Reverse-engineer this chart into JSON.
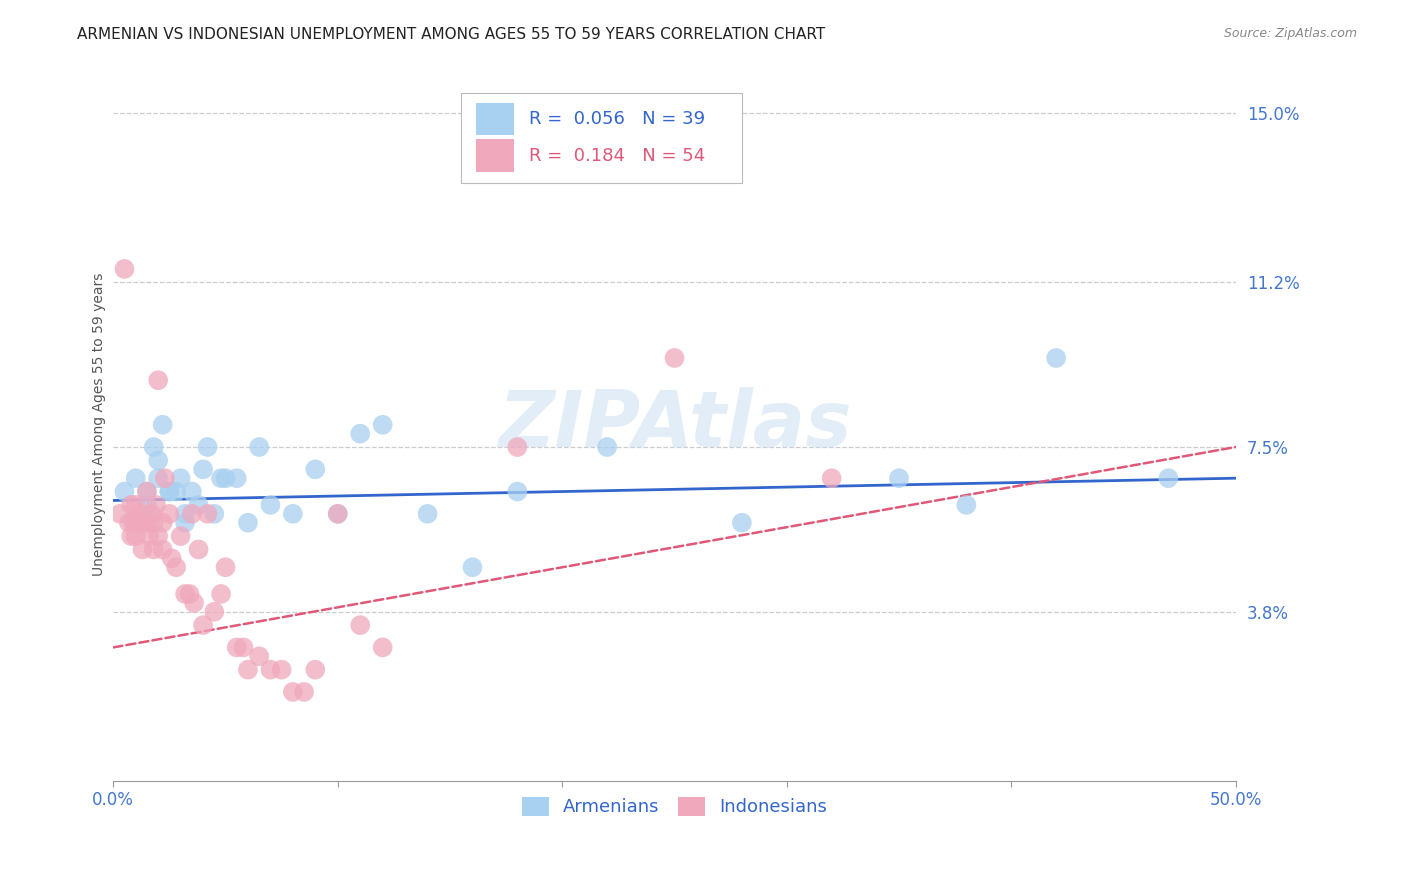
{
  "title": "ARMENIAN VS INDONESIAN UNEMPLOYMENT AMONG AGES 55 TO 59 YEARS CORRELATION CHART",
  "source": "Source: ZipAtlas.com",
  "ylabel": "Unemployment Among Ages 55 to 59 years",
  "xlim": [
    0,
    0.5
  ],
  "ylim": [
    0,
    0.16
  ],
  "yticks_right": [
    0.038,
    0.075,
    0.112,
    0.15
  ],
  "yticklabels_right": [
    "3.8%",
    "7.5%",
    "11.2%",
    "15.0%"
  ],
  "armenian_R": 0.056,
  "armenian_N": 39,
  "indonesian_R": 0.184,
  "indonesian_N": 54,
  "armenian_color": "#a8d0f0",
  "indonesian_color": "#f0a8bc",
  "trend_armenian_color": "#3366cc",
  "trend_indonesian_color": "#e05878",
  "watermark": "ZIPAtlas",
  "armenian_x": [
    0.005,
    0.01,
    0.015,
    0.015,
    0.018,
    0.02,
    0.02,
    0.022,
    0.025,
    0.025,
    0.028,
    0.03,
    0.032,
    0.032,
    0.035,
    0.038,
    0.04,
    0.042,
    0.045,
    0.048,
    0.05,
    0.055,
    0.06,
    0.065,
    0.07,
    0.08,
    0.09,
    0.1,
    0.11,
    0.12,
    0.14,
    0.16,
    0.18,
    0.22,
    0.28,
    0.35,
    0.38,
    0.42,
    0.47
  ],
  "armenian_y": [
    0.065,
    0.068,
    0.065,
    0.062,
    0.075,
    0.068,
    0.072,
    0.08,
    0.065,
    0.065,
    0.065,
    0.068,
    0.06,
    0.058,
    0.065,
    0.062,
    0.07,
    0.075,
    0.06,
    0.068,
    0.068,
    0.068,
    0.058,
    0.075,
    0.062,
    0.06,
    0.07,
    0.06,
    0.078,
    0.08,
    0.06,
    0.048,
    0.065,
    0.075,
    0.058,
    0.068,
    0.062,
    0.095,
    0.068
  ],
  "indonesian_x": [
    0.003,
    0.005,
    0.007,
    0.008,
    0.008,
    0.009,
    0.01,
    0.01,
    0.01,
    0.012,
    0.012,
    0.013,
    0.014,
    0.015,
    0.015,
    0.016,
    0.017,
    0.018,
    0.018,
    0.019,
    0.02,
    0.02,
    0.022,
    0.022,
    0.023,
    0.025,
    0.026,
    0.028,
    0.03,
    0.032,
    0.034,
    0.035,
    0.036,
    0.038,
    0.04,
    0.042,
    0.045,
    0.048,
    0.05,
    0.055,
    0.058,
    0.06,
    0.065,
    0.07,
    0.075,
    0.08,
    0.085,
    0.09,
    0.1,
    0.11,
    0.12,
    0.18,
    0.25,
    0.32
  ],
  "indonesian_y": [
    0.06,
    0.115,
    0.058,
    0.062,
    0.055,
    0.058,
    0.062,
    0.058,
    0.055,
    0.06,
    0.058,
    0.052,
    0.058,
    0.065,
    0.058,
    0.055,
    0.06,
    0.052,
    0.058,
    0.062,
    0.055,
    0.09,
    0.052,
    0.058,
    0.068,
    0.06,
    0.05,
    0.048,
    0.055,
    0.042,
    0.042,
    0.06,
    0.04,
    0.052,
    0.035,
    0.06,
    0.038,
    0.042,
    0.048,
    0.03,
    0.03,
    0.025,
    0.028,
    0.025,
    0.025,
    0.02,
    0.02,
    0.025,
    0.06,
    0.035,
    0.03,
    0.075,
    0.095,
    0.068
  ],
  "background_color": "#ffffff",
  "title_fontsize": 11,
  "axis_label_fontsize": 10,
  "tick_fontsize": 12,
  "legend_fontsize": 13
}
